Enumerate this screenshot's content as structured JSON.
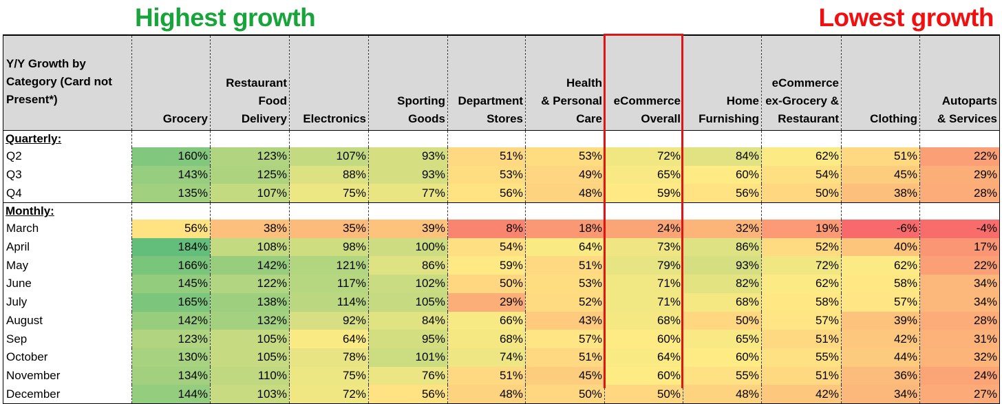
{
  "annotations": {
    "left": "Highest growth",
    "right": "Lowest growth",
    "left_color": "#17a43a",
    "right_color": "#f10f0f",
    "highlight_color": "#e31313"
  },
  "chart_data": {
    "type": "table",
    "header_label": [
      "Y/Y Growth by",
      "Category (Card not",
      "Present*)"
    ],
    "columns": [
      {
        "key": "grocery",
        "label": [
          "Grocery"
        ]
      },
      {
        "key": "restaurant",
        "label": [
          "Restaurant",
          "Food",
          "Delivery"
        ]
      },
      {
        "key": "electronics",
        "label": [
          "Electronics"
        ]
      },
      {
        "key": "sporting",
        "label": [
          "Sporting",
          "Goods"
        ]
      },
      {
        "key": "department",
        "label": [
          "Department",
          "Stores"
        ]
      },
      {
        "key": "health",
        "label": [
          "Health",
          "& Personal",
          "Care"
        ]
      },
      {
        "key": "ecommerce",
        "label": [
          "eCommerce",
          "Overall"
        ]
      },
      {
        "key": "home",
        "label": [
          "Home",
          "Furnishing"
        ]
      },
      {
        "key": "ecom_ex",
        "label": [
          "eCommerce",
          "ex-Grocery &",
          "Restaurant"
        ]
      },
      {
        "key": "clothing",
        "label": [
          "Clothing"
        ]
      },
      {
        "key": "autoparts",
        "label": [
          "Autoparts",
          "& Services"
        ]
      }
    ],
    "highlighted_column": "ecommerce",
    "sections": [
      {
        "label": "Quarterly:",
        "rows": [
          {
            "label": "Q2",
            "values": [
              160,
              123,
              107,
              93,
              51,
              53,
              72,
              84,
              62,
              51,
              22
            ]
          },
          {
            "label": "Q3",
            "values": [
              143,
              125,
              88,
              93,
              53,
              49,
              65,
              60,
              54,
              45,
              29
            ]
          },
          {
            "label": "Q4",
            "values": [
              135,
              107,
              75,
              77,
              56,
              48,
              59,
              56,
              50,
              38,
              28
            ]
          }
        ]
      },
      {
        "label": "Monthly:",
        "rows": [
          {
            "label": "March",
            "values": [
              56,
              38,
              35,
              39,
              8,
              18,
              24,
              32,
              19,
              -6,
              -4
            ]
          },
          {
            "label": "April",
            "values": [
              184,
              108,
              98,
              100,
              54,
              64,
              73,
              86,
              52,
              40,
              17
            ]
          },
          {
            "label": "May",
            "values": [
              166,
              142,
              121,
              86,
              59,
              51,
              79,
              93,
              72,
              62,
              22
            ]
          },
          {
            "label": "June",
            "values": [
              145,
              122,
              117,
              102,
              50,
              53,
              71,
              82,
              62,
              58,
              34
            ]
          },
          {
            "label": "July",
            "values": [
              165,
              138,
              114,
              105,
              29,
              52,
              71,
              68,
              58,
              57,
              34
            ]
          },
          {
            "label": "August",
            "values": [
              142,
              132,
              92,
              84,
              66,
              43,
              68,
              50,
              57,
              39,
              28
            ]
          },
          {
            "label": "Sep",
            "values": [
              123,
              105,
              64,
              95,
              68,
              57,
              60,
              65,
              51,
              42,
              31
            ]
          },
          {
            "label": "October",
            "values": [
              130,
              105,
              78,
              101,
              74,
              51,
              64,
              60,
              55,
              44,
              32
            ]
          },
          {
            "label": "November",
            "values": [
              134,
              110,
              75,
              76,
              51,
              45,
              60,
              55,
              51,
              36,
              24
            ]
          },
          {
            "label": "December",
            "values": [
              144,
              103,
              72,
              56,
              48,
              50,
              50,
              48,
              42,
              34,
              27
            ]
          }
        ]
      }
    ],
    "value_suffix": "%",
    "color_scale": {
      "type": "diverging",
      "stops": [
        {
          "value": -6,
          "color": "#f8696b"
        },
        {
          "value": 60,
          "color": "#ffeb84"
        },
        {
          "value": 184,
          "color": "#63be7b"
        }
      ]
    }
  }
}
